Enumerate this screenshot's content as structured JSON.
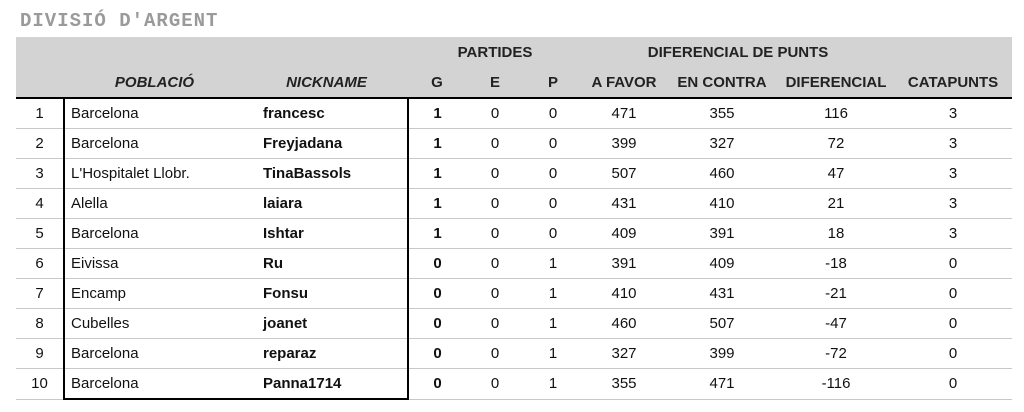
{
  "title": "DIVISIÓ D'ARGENT",
  "header": {
    "group_partides": "PARTIDES",
    "group_diferencial": "DIFERENCIAL DE PUNTS",
    "col_poblacio": "POBLACIÓ",
    "col_nickname": "NICKNAME",
    "col_g": "G",
    "col_e": "E",
    "col_p": "P",
    "col_a_favor": "A FAVOR",
    "col_en_contra": "EN CONTRA",
    "col_diferencial": "DIFERENCIAL",
    "col_catapunts": "CATAPUNTS"
  },
  "rows": [
    {
      "pos": "1",
      "poblacio": "Barcelona",
      "nickname": "francesc",
      "g": "1",
      "e": "0",
      "p": "0",
      "a_favor": "471",
      "en_contra": "355",
      "diferencial": "116",
      "catapunts": "3"
    },
    {
      "pos": "2",
      "poblacio": "Barcelona",
      "nickname": "Freyjadana",
      "g": "1",
      "e": "0",
      "p": "0",
      "a_favor": "399",
      "en_contra": "327",
      "diferencial": "72",
      "catapunts": "3"
    },
    {
      "pos": "3",
      "poblacio": "L'Hospitalet Llobr.",
      "nickname": "TinaBassols",
      "g": "1",
      "e": "0",
      "p": "0",
      "a_favor": "507",
      "en_contra": "460",
      "diferencial": "47",
      "catapunts": "3"
    },
    {
      "pos": "4",
      "poblacio": "Alella",
      "nickname": "laiara",
      "g": "1",
      "e": "0",
      "p": "0",
      "a_favor": "431",
      "en_contra": "410",
      "diferencial": "21",
      "catapunts": "3"
    },
    {
      "pos": "5",
      "poblacio": "Barcelona",
      "nickname": "Ishtar",
      "g": "1",
      "e": "0",
      "p": "0",
      "a_favor": "409",
      "en_contra": "391",
      "diferencial": "18",
      "catapunts": "3"
    },
    {
      "pos": "6",
      "poblacio": "Eivissa",
      "nickname": "Ru",
      "g": "0",
      "e": "0",
      "p": "1",
      "a_favor": "391",
      "en_contra": "409",
      "diferencial": "-18",
      "catapunts": "0"
    },
    {
      "pos": "7",
      "poblacio": "Encamp",
      "nickname": "Fonsu",
      "g": "0",
      "e": "0",
      "p": "1",
      "a_favor": "410",
      "en_contra": "431",
      "diferencial": "-21",
      "catapunts": "0"
    },
    {
      "pos": "8",
      "poblacio": "Cubelles",
      "nickname": "joanet",
      "g": "0",
      "e": "0",
      "p": "1",
      "a_favor": "460",
      "en_contra": "507",
      "diferencial": "-47",
      "catapunts": "0"
    },
    {
      "pos": "9",
      "poblacio": "Barcelona",
      "nickname": "reparaz",
      "g": "0",
      "e": "0",
      "p": "1",
      "a_favor": "327",
      "en_contra": "399",
      "diferencial": "-72",
      "catapunts": "0"
    },
    {
      "pos": "10",
      "poblacio": "Barcelona",
      "nickname": "Panna1714",
      "g": "0",
      "e": "0",
      "p": "1",
      "a_favor": "355",
      "en_contra": "471",
      "diferencial": "-116",
      "catapunts": "0"
    }
  ]
}
